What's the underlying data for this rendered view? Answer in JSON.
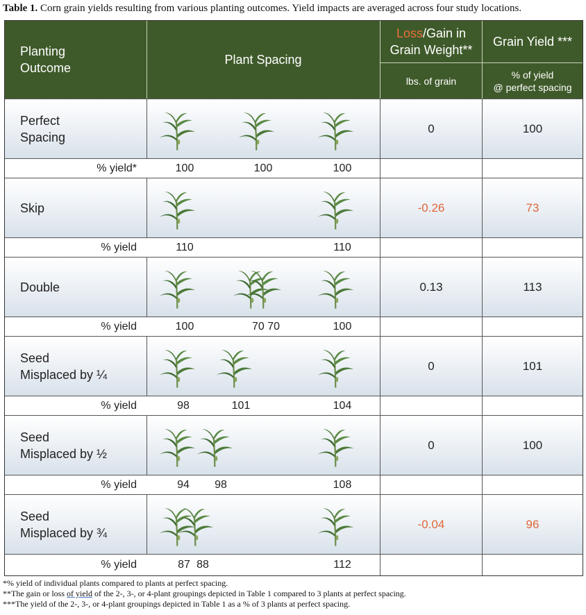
{
  "caption": {
    "label": "Table 1.",
    "text": " Corn grain yields resulting from various planting outcomes. Yield impacts are averaged across four study locations."
  },
  "header": {
    "outcome_line1": "Planting",
    "outcome_line2": "Outcome",
    "spacing": "Plant Spacing",
    "loss_word": "Loss",
    "loss_rest_line1": "/Gain in",
    "loss_line2": "Grain Weight**",
    "lbs": "lbs. of grain",
    "yield": "Grain Yield ***",
    "pct_line1": "% of yield",
    "pct_line2": "@ perfect spacing"
  },
  "rows": [
    {
      "name_line1": "Perfect",
      "name_line2": "Spacing",
      "loss": "0",
      "yield": "100",
      "pct_label": "% yield*",
      "pct_values": [
        "100",
        "100",
        "100"
      ]
    },
    {
      "name_line1": "Skip",
      "name_line2": "",
      "loss": "-0.26",
      "yield": "73",
      "pct_label": "% yield",
      "pct_values": [
        "110",
        "110"
      ]
    },
    {
      "name_line1": "Double",
      "name_line2": "",
      "loss": "0.13",
      "yield": "113",
      "pct_label": "% yield",
      "pct_values": [
        "100",
        "70 70",
        "100"
      ]
    },
    {
      "name_line1": "Seed",
      "name_line2": "Misplaced by ¼",
      "loss": "0",
      "yield": "101",
      "pct_label": "% yield",
      "pct_values": [
        "98",
        "101",
        "104"
      ]
    },
    {
      "name_line1": "Seed",
      "name_line2": "Misplaced by ½",
      "loss": "0",
      "yield": "100",
      "pct_label": "% yield",
      "pct_values": [
        "94",
        "98",
        "108"
      ]
    },
    {
      "name_line1": "Seed",
      "name_line2": "Misplaced by ¾",
      "loss": "-0.04",
      "yield": "96",
      "pct_label": "% yield",
      "pct_values": [
        "87",
        "88",
        "112"
      ]
    }
  ],
  "footnotes": {
    "f1": "*% yield of individual plants compared to plants at perfect spacing.",
    "f2_a": "**The gain or loss ",
    "f2_u": "of yield",
    "f2_b": " of the 2-, 3-, or 4-plant groupings depicted in Table 1 compared to 3 plants at perfect spacing.",
    "f3": "***The yield of the 2-, 3-, or 4-plant groupings depicted in Table 1 as a % of 3 plants at perfect spacing."
  },
  "colors": {
    "header_green": "#3f5a2a",
    "loss_orange": "#e8703a",
    "negative_red": "#e0673a",
    "plant_green": "#4d7a3a"
  }
}
